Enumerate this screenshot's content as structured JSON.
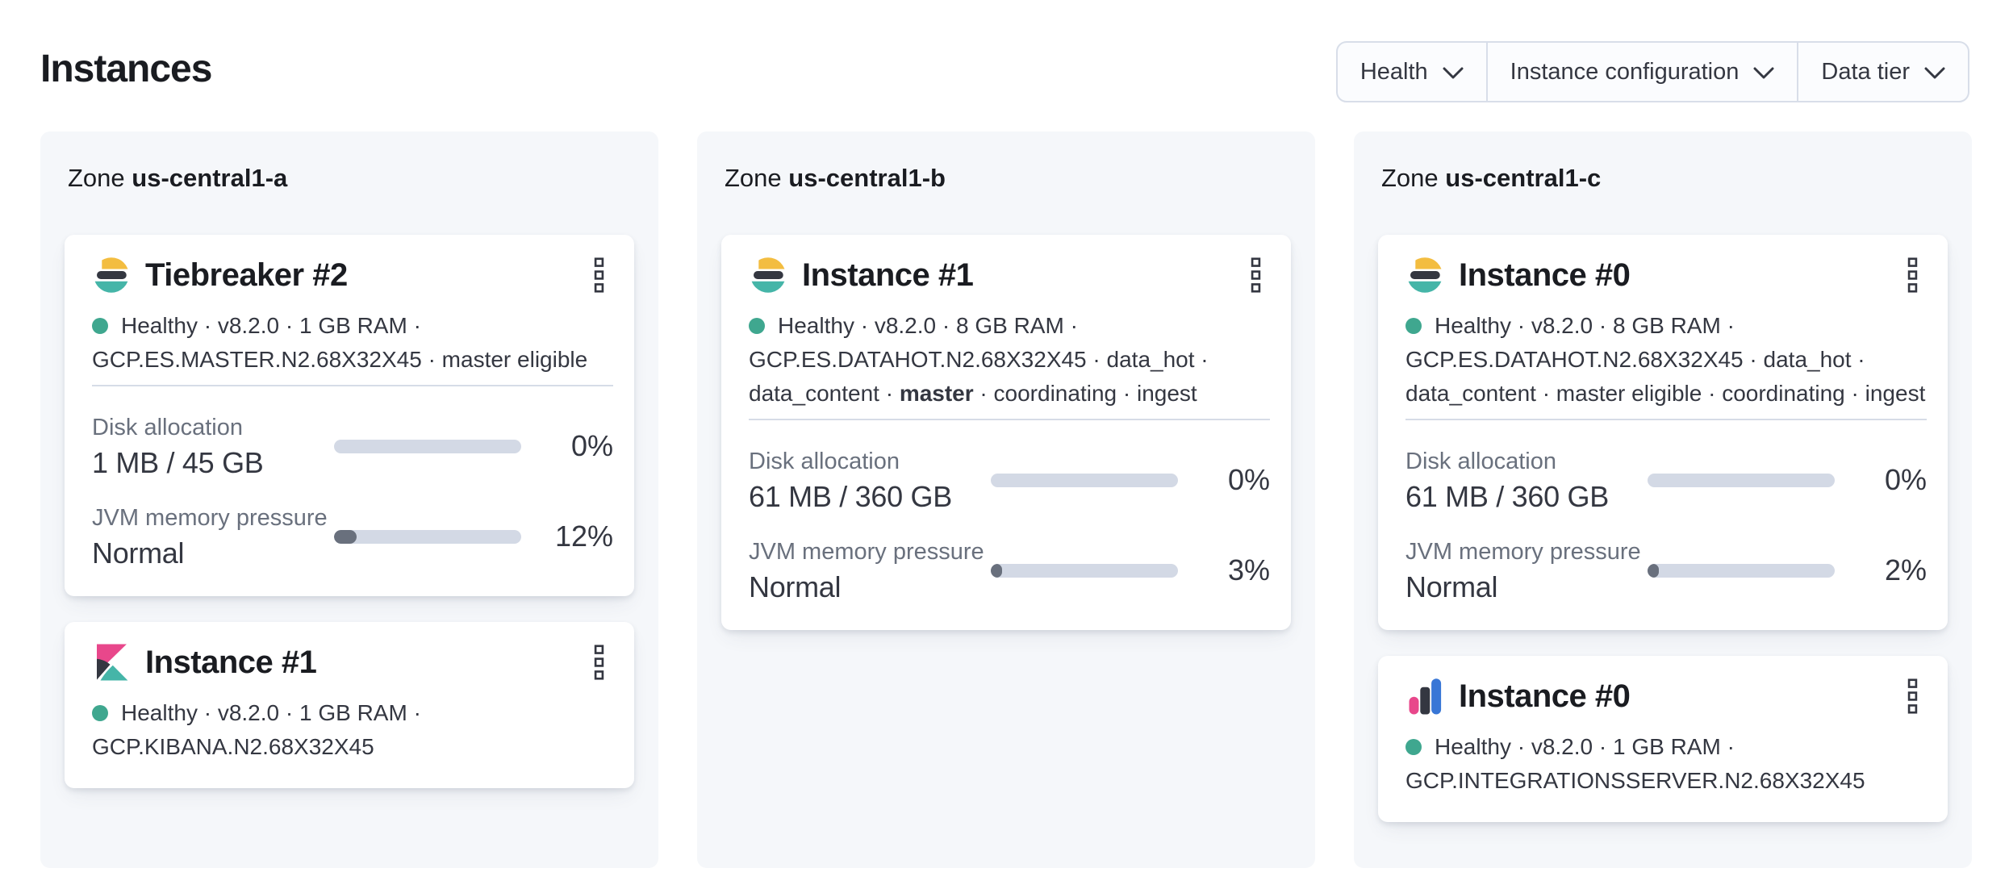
{
  "header": {
    "title": "Instances"
  },
  "filters": {
    "items": [
      {
        "label": "Health",
        "icon": "chevron-down"
      },
      {
        "label": "Instance configuration",
        "icon": "chevron-down"
      },
      {
        "label": "Data tier",
        "icon": "chevron-down"
      }
    ]
  },
  "zones": [
    {
      "label": "Zone",
      "name": "us-central1-a",
      "cards": [
        {
          "logo": "elasticsearch",
          "title": "Tiebreaker #2",
          "menu_icon": "boxes-vertical",
          "status": {
            "health_icon": "health-dot",
            "line1": "Healthy · v8.2.0 · 1 GB RAM ·",
            "line2": "GCP.ES.MASTER.N2.68X32X45 · master eligible"
          },
          "metrics": {
            "disk": {
              "label": "Disk allocation",
              "value": "1 MB / 45 GB",
              "percent": 0,
              "percent_label": "0%"
            },
            "jvm": {
              "label": "JVM memory pressure",
              "value": "Normal",
              "percent": 12,
              "percent_label": "12%"
            }
          }
        },
        {
          "logo": "kibana",
          "title": "Instance #1",
          "menu_icon": "boxes-vertical",
          "status": {
            "health_icon": "health-dot",
            "line1": "Healthy · v8.2.0 · 1 GB RAM ·",
            "line2": "GCP.KIBANA.N2.68X32X45"
          }
        }
      ]
    },
    {
      "label": "Zone",
      "name": "us-central1-b",
      "cards": [
        {
          "logo": "elasticsearch",
          "title": "Instance #1",
          "menu_icon": "boxes-vertical",
          "status": {
            "health_icon": "health-dot",
            "line1": "Healthy · v8.2.0 · 8 GB RAM ·",
            "line2": "GCP.ES.DATAHOT.N2.68X32X45 · data_hot ·",
            "line3_pre": "data_content · ",
            "line3_bold": "master",
            "line3_post": " · coordinating · ingest"
          },
          "metrics": {
            "disk": {
              "label": "Disk allocation",
              "value": "61 MB / 360 GB",
              "percent": 0,
              "percent_label": "0%"
            },
            "jvm": {
              "label": "JVM memory pressure",
              "value": "Normal",
              "percent": 3,
              "percent_label": "3%"
            }
          }
        }
      ]
    },
    {
      "label": "Zone",
      "name": "us-central1-c",
      "cards": [
        {
          "logo": "elasticsearch",
          "title": "Instance #0",
          "menu_icon": "boxes-vertical",
          "status": {
            "health_icon": "health-dot",
            "line1": "Healthy · v8.2.0 · 8 GB RAM ·",
            "line2": "GCP.ES.DATAHOT.N2.68X32X45 · data_hot ·",
            "line3_pre": "data_content · master eligible · coordinating · ingest",
            "line3_bold": "",
            "line3_post": ""
          },
          "metrics": {
            "disk": {
              "label": "Disk allocation",
              "value": "61 MB / 360 GB",
              "percent": 0,
              "percent_label": "0%"
            },
            "jvm": {
              "label": "JVM memory pressure",
              "value": "Normal",
              "percent": 2,
              "percent_label": "2%"
            }
          }
        },
        {
          "logo": "integrations-server",
          "title": "Instance #0",
          "menu_icon": "boxes-vertical",
          "status": {
            "health_icon": "health-dot",
            "line1": "Healthy · v8.2.0 · 1 GB RAM ·",
            "line2": "GCP.INTEGRATIONSSERVER.N2.68X32X45"
          }
        }
      ]
    }
  ],
  "colors": {
    "heading": "#1a1c21",
    "body_text": "#343741",
    "muted_label": "#69707d",
    "panel_bg": "#f5f7fa",
    "bar_track": "#d3d9e5",
    "bar_fill": "#69707d",
    "health_dot": "#3fa78f",
    "logo_yellow": "#f3bd40",
    "logo_teal": "#45b5a8",
    "logo_pink": "#e8478b",
    "logo_blue": "#3876d6",
    "logo_dark": "#343741",
    "border": "#d8dee9"
  }
}
